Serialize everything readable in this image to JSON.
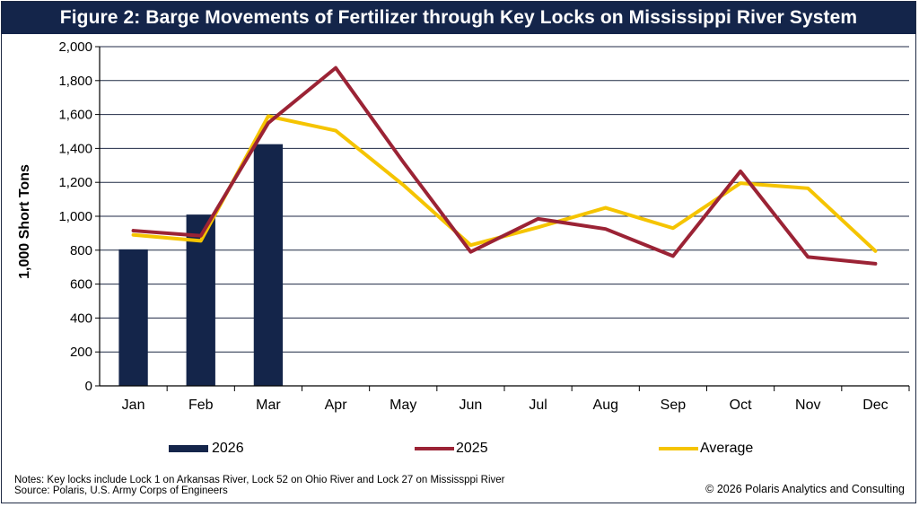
{
  "title": "Figure 2: Barge Movements of Fertilizer through Key Locks on Mississippi River System",
  "notes_line1": "Notes: Key locks include Lock 1 on Arkansas River, Lock 52 on Ohio River and Lock 27 on Mississppi River",
  "notes_line2": "Source: Polaris, U.S. Army Corps of Engineers",
  "copyright": "© 2026 Polaris Analytics and Consulting",
  "colors": {
    "title_bg": "#14254a",
    "bar_2026": "#14254a",
    "line_2025": "#9b2335",
    "line_average": "#f5c400",
    "grid": "#1f2a44"
  },
  "chart_data": {
    "type": "bar",
    "ylabel": "1,000 Short Tons",
    "ylim": [
      0,
      2000
    ],
    "ytick_step": 200,
    "yticks": [
      "0",
      "200",
      "400",
      "600",
      "800",
      "1,000",
      "1,200",
      "1,400",
      "1,600",
      "1,800",
      "2,000"
    ],
    "categories": [
      "Jan",
      "Feb",
      "Mar",
      "Apr",
      "May",
      "Jun",
      "Jul",
      "Aug",
      "Sep",
      "Oct",
      "Nov",
      "Dec"
    ],
    "grid": true,
    "legend_position": "bottom",
    "series": [
      {
        "name": "2026",
        "type": "bar",
        "values": [
          805,
          1010,
          1425,
          null,
          null,
          null,
          null,
          null,
          null,
          null,
          null,
          null
        ]
      },
      {
        "name": "2025",
        "type": "line",
        "values": [
          915,
          885,
          1550,
          1875,
          1320,
          790,
          985,
          925,
          765,
          1265,
          760,
          720
        ]
      },
      {
        "name": "Average",
        "type": "line",
        "values": [
          890,
          855,
          1590,
          1505,
          1185,
          830,
          935,
          1050,
          930,
          1195,
          1165,
          795
        ]
      }
    ]
  }
}
